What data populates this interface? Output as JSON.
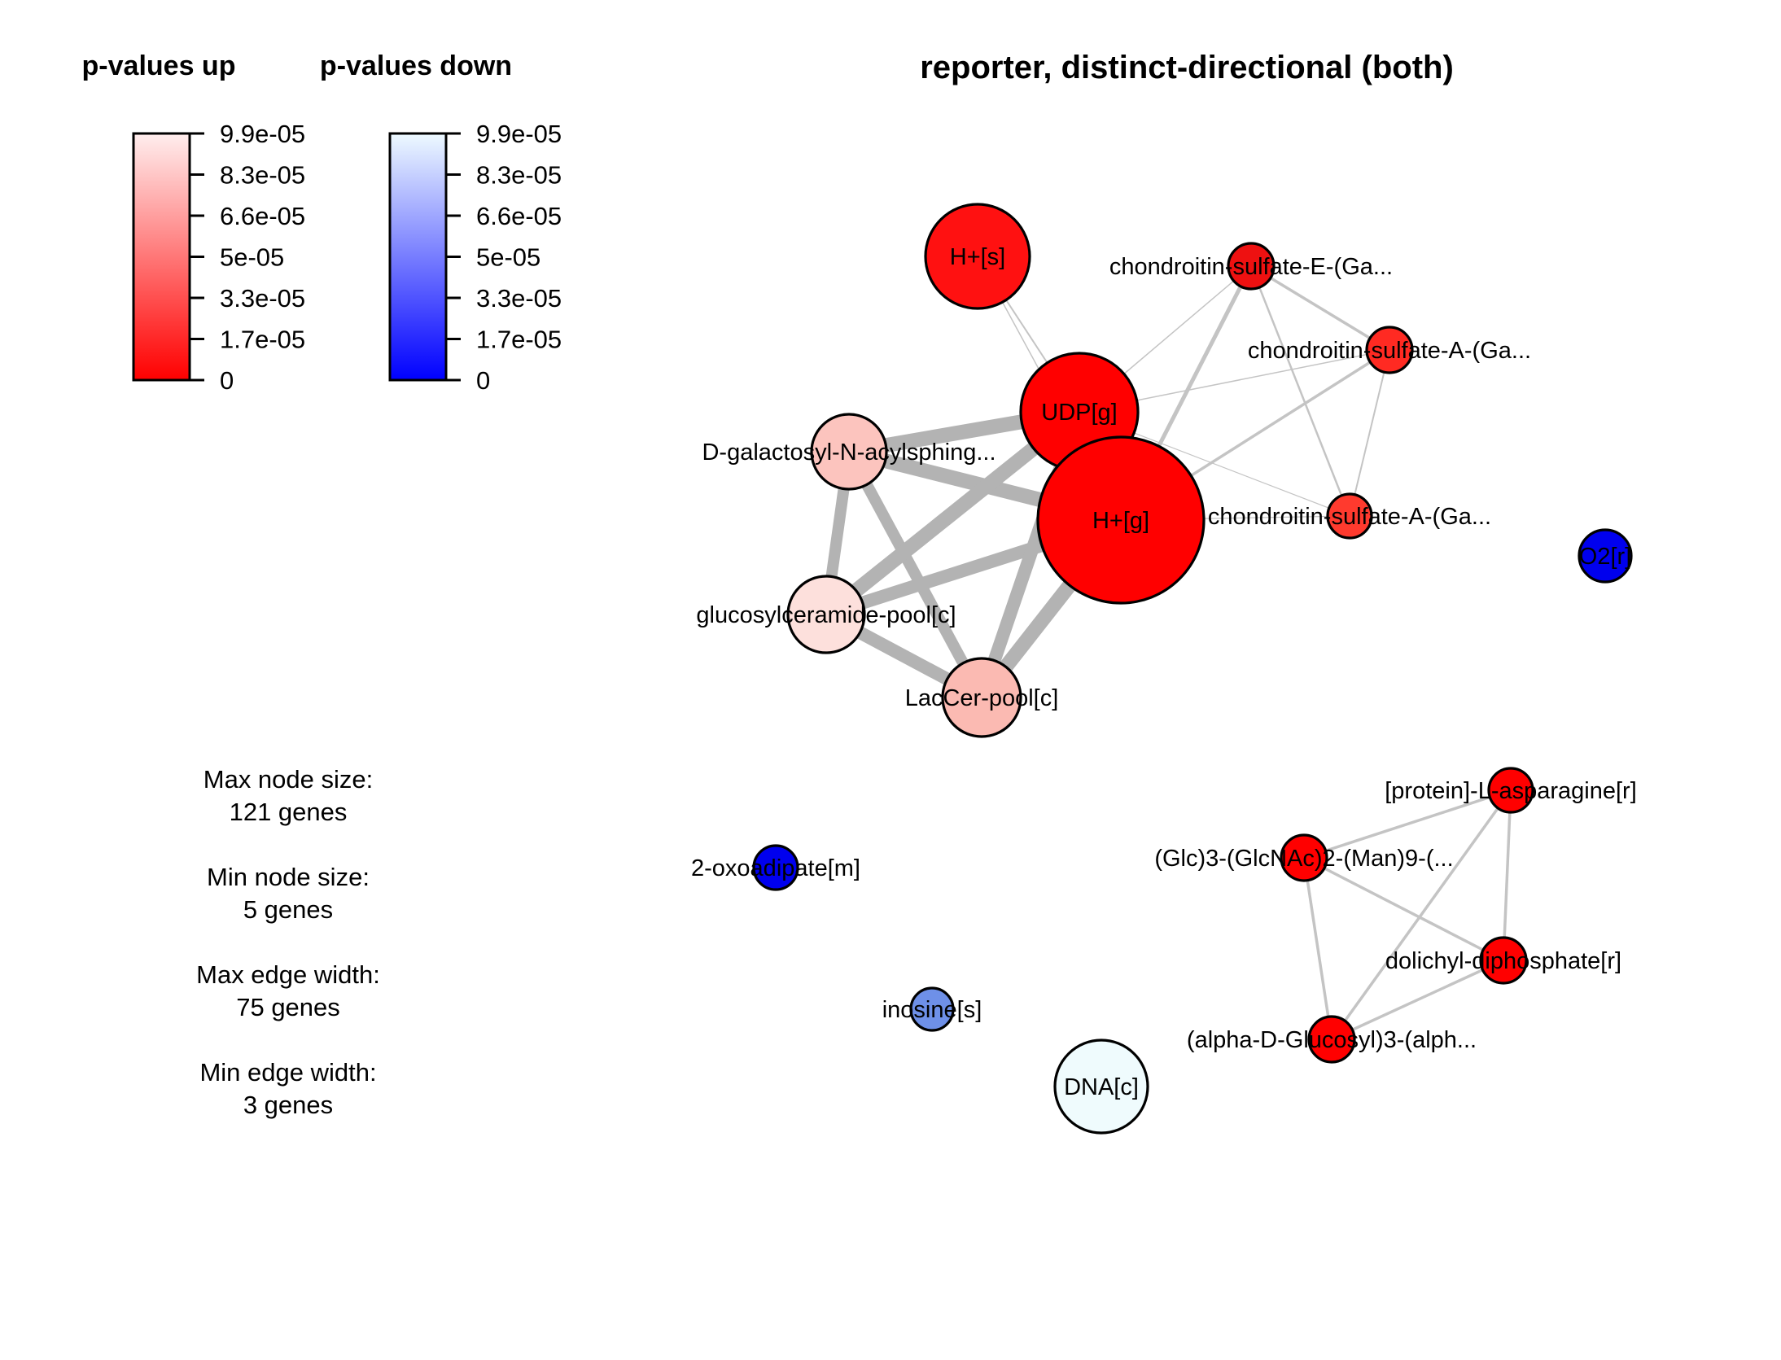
{
  "title": "reporter, distinct-directional (both)",
  "legend_up": {
    "heading": "p-values up",
    "ticks": [
      "9.9e-05",
      "8.3e-05",
      "6.6e-05",
      "5e-05",
      "3.3e-05",
      "1.7e-05",
      "0"
    ],
    "color_low": "#ff0000",
    "color_high": "#ffeeee"
  },
  "legend_down": {
    "heading": "p-values down",
    "ticks": [
      "9.9e-05",
      "8.3e-05",
      "6.6e-05",
      "5e-05",
      "3.3e-05",
      "1.7e-05",
      "0"
    ],
    "color_low": "#0000ff",
    "color_high": "#eefaff"
  },
  "info": {
    "max_node_label": "Max node size:",
    "max_node_value": "121 genes",
    "min_node_label": "Min node size:",
    "min_node_value": "5 genes",
    "max_edge_label": "Max edge width:",
    "max_edge_value": "75 genes",
    "min_edge_label": "Min edge width:",
    "min_edge_value": "3 genes"
  },
  "nodes": [
    {
      "id": "hs",
      "label": "H+[s]",
      "color": "#ff1111"
    },
    {
      "id": "cs_e",
      "label": "chondroitin-sulfate-E-(Ga...",
      "color": "#ee1111"
    },
    {
      "id": "cs_a1",
      "label": "chondroitin-sulfate-A-(Ga...",
      "color": "#ff2a22"
    },
    {
      "id": "udp",
      "label": "UDP[g]",
      "color": "#ff0000"
    },
    {
      "id": "dgal",
      "label": "D-galactosyl-N-acylsphing...",
      "color": "#fcc4be"
    },
    {
      "id": "hg",
      "label": "H+[g]",
      "color": "#ff0000"
    },
    {
      "id": "cs_a2",
      "label": "chondroitin-sulfate-A-(Ga...",
      "color": "#ff3a2e"
    },
    {
      "id": "o2r",
      "label": "O2[r]",
      "color": "#0000ee"
    },
    {
      "id": "gcer",
      "label": "glucosylceramide-pool[c]",
      "color": "#fde0dc"
    },
    {
      "id": "lac",
      "label": "LacCer-pool[c]",
      "color": "#fbbab2"
    },
    {
      "id": "pasn",
      "label": "[protein]-L-asparagine[r]",
      "color": "#ff0000"
    },
    {
      "id": "glc3",
      "label": "(Glc)3-(GlcNAc)2-(Man)9-(...",
      "color": "#ff0000"
    },
    {
      "id": "oxo",
      "label": "2-oxoadipate[m]",
      "color": "#0000ee"
    },
    {
      "id": "dolp",
      "label": "dolichyl-diphosphate[r]",
      "color": "#ff0000"
    },
    {
      "id": "ino",
      "label": "inosine[s]",
      "color": "#6e90e8"
    },
    {
      "id": "alpha",
      "label": "(alpha-D-Glucosyl)3-(alph...",
      "color": "#ff0000"
    },
    {
      "id": "dna",
      "label": "DNA[c]",
      "color": "#effbfd"
    }
  ]
}
